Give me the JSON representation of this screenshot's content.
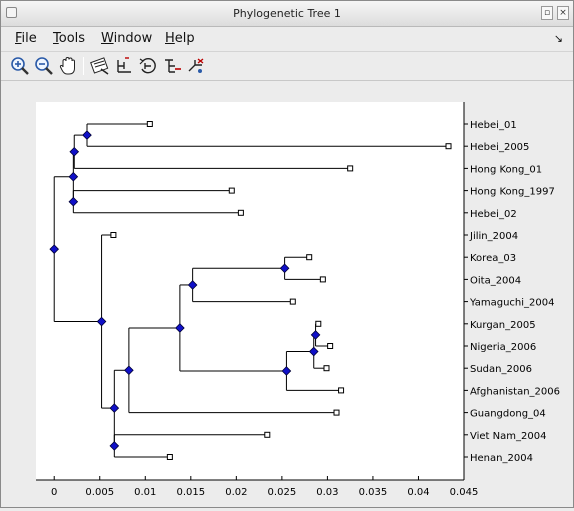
{
  "window": {
    "title": "Phylogenetic Tree 1"
  },
  "menu": [
    "File",
    "Tools",
    "Window",
    "Help"
  ],
  "toolbar": [
    {
      "name": "zoom-in-icon"
    },
    {
      "name": "zoom-out-icon"
    },
    {
      "name": "pan-hand-icon"
    },
    {
      "name": "inspect-tool-icon"
    },
    {
      "name": "collapse-expand-icon"
    },
    {
      "name": "rotate-branch-icon"
    },
    {
      "name": "rename-tool-icon"
    },
    {
      "name": "prune-tool-icon"
    }
  ],
  "chart_data": {
    "type": "phylogenetic-tree",
    "xlabel": "",
    "xlim": [
      -0.002,
      0.045
    ],
    "xticks": [
      "0",
      "0.005",
      "0.01",
      "0.015",
      "0.02",
      "0.025",
      "0.03",
      "0.035",
      "0.04",
      "0.045"
    ],
    "leaves": [
      {
        "name": "Hebei_01",
        "dist": 0.0105
      },
      {
        "name": "Hebei_2005",
        "dist": 0.0433
      },
      {
        "name": "Hong Kong_01",
        "dist": 0.0325
      },
      {
        "name": "Hong Kong_1997",
        "dist": 0.0195
      },
      {
        "name": "Hebei_02",
        "dist": 0.0205
      },
      {
        "name": "Jilin_2004",
        "dist": 0.0065
      },
      {
        "name": "Korea_03",
        "dist": 0.028
      },
      {
        "name": "Oita_2004",
        "dist": 0.0295
      },
      {
        "name": "Yamaguchi_2004",
        "dist": 0.0262
      },
      {
        "name": "Kurgan_2005",
        "dist": 0.029
      },
      {
        "name": "Nigeria_2006",
        "dist": 0.0303
      },
      {
        "name": "Sudan_2006",
        "dist": 0.0299
      },
      {
        "name": "Afghanistan_2006",
        "dist": 0.0315
      },
      {
        "name": "Guangdong_04",
        "dist": 0.031
      },
      {
        "name": "Viet Nam_2004",
        "dist": 0.0234
      },
      {
        "name": "Henan_2004",
        "dist": 0.0127
      }
    ],
    "nodes": [
      {
        "id": "root",
        "dist": 0.0,
        "children": [
          "n_a",
          "n_b"
        ]
      },
      {
        "id": "n_a",
        "dist": 0.0021,
        "children": [
          "n_a1",
          "n_a2"
        ]
      },
      {
        "id": "n_a1",
        "dist": 0.0022,
        "children": [
          "n_a11",
          "Hong Kong_01"
        ]
      },
      {
        "id": "n_a11",
        "dist": 0.0036,
        "children": [
          "n_a111",
          "Hebei_2005"
        ]
      },
      {
        "id": "n_a111",
        "dist": 0.0054,
        "children": [
          "Hebei_01",
          "Hebei_2005"
        ]
      },
      {
        "id": "n_a2",
        "dist": 0.0021,
        "children": [
          "Hong Kong_1997",
          "Hebei_02"
        ]
      },
      {
        "id": "n_b",
        "dist": 0.0052,
        "children": [
          "Jilin_2004",
          "n_b2"
        ]
      },
      {
        "id": "n_b2",
        "dist": 0.0066,
        "children": [
          "n_b21",
          "n_b22"
        ]
      },
      {
        "id": "n_b21",
        "dist": 0.0082,
        "children": [
          "n_b211",
          "Guangdong_04"
        ]
      },
      {
        "id": "n_b211",
        "dist": 0.0138,
        "children": [
          "n_b2111",
          "n_b2112"
        ]
      },
      {
        "id": "n_b2111",
        "dist": 0.0152,
        "children": [
          "n_k",
          "Yamaguchi_2004"
        ]
      },
      {
        "id": "n_k",
        "dist": 0.024,
        "children": [
          "n_k1",
          "Yamaguchi_2004"
        ]
      },
      {
        "id": "n_k1",
        "dist": 0.0253,
        "children": [
          "Korea_03",
          "Oita_2004"
        ]
      },
      {
        "id": "n_b2112",
        "dist": 0.0255,
        "children": [
          "n_n",
          "Afghanistan_2006"
        ]
      },
      {
        "id": "n_n",
        "dist": 0.0285,
        "children": [
          "n_n1",
          "Sudan_2006"
        ]
      },
      {
        "id": "n_n1",
        "dist": 0.0287,
        "children": [
          "Kurgan_2005",
          "Nigeria_2006"
        ]
      },
      {
        "id": "n_b22",
        "dist": 0.0066,
        "children": [
          "Viet Nam_2004",
          "Henan_2004"
        ]
      }
    ]
  }
}
